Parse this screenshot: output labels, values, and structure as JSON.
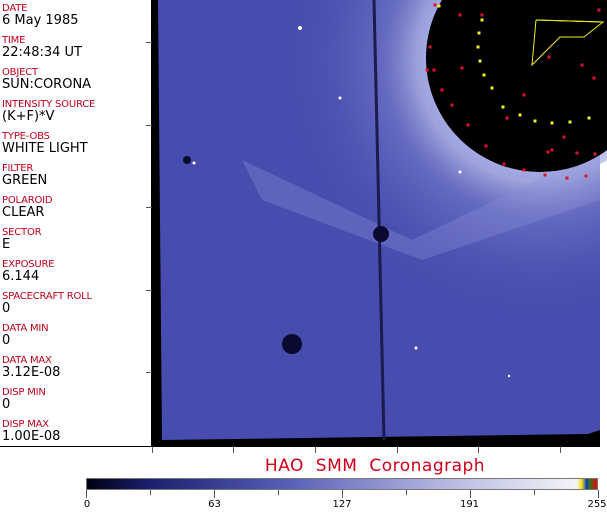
{
  "fields": [
    {
      "label": "DATE",
      "value": "6 May 1985"
    },
    {
      "label": "TIME",
      "value": "22:48:34 UT"
    },
    {
      "label": "OBJECT",
      "value": "SUN:CORONA"
    },
    {
      "label": "INTENSITY SOURCE",
      "value": "(K+F)*V"
    },
    {
      "label": "TYPE-OBS",
      "value": "WHITE LIGHT"
    },
    {
      "label": "FILTER",
      "value": "GREEN"
    },
    {
      "label": "POLAROID",
      "value": "CLEAR"
    },
    {
      "label": "SECTOR",
      "value": "E"
    },
    {
      "label": "EXPOSURE",
      "value": "6.144"
    },
    {
      "label": "SPACECRAFT ROLL",
      "value": "0"
    },
    {
      "label": "DATA MIN",
      "value": "0"
    },
    {
      "label": "DATA MAX",
      "value": "3.12E-08"
    },
    {
      "label": "DISP MIN",
      "value": "0"
    },
    {
      "label": "DISP MAX",
      "value": "1.00E-08"
    }
  ],
  "title": "HAO  SMM  Coronagraph",
  "colorbar": {
    "ticks": [
      "0",
      "63",
      "127",
      "191",
      "255"
    ],
    "colors": [
      "#000010",
      "#1a1f6e",
      "#5a60b8",
      "#b4b8e0",
      "#f4f4f8"
    ]
  },
  "colors": {
    "label": "#c0001a",
    "disk": "#4d52b4",
    "overlay_red": "#e0102a",
    "overlay_yellow": "#f0f020"
  }
}
